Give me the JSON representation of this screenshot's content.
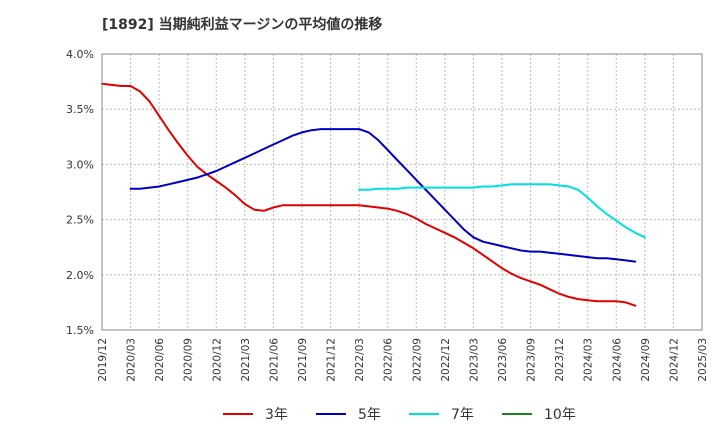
{
  "chart_data": {
    "type": "line",
    "title": "[1892]  当期純利益マージンの平均値の推移",
    "xlabel": "",
    "ylabel": "",
    "ylim": [
      1.5,
      4.0
    ],
    "y_ticks": [
      "1.5%",
      "2.0%",
      "2.5%",
      "3.0%",
      "3.5%",
      "4.0%"
    ],
    "y_tick_values": [
      1.5,
      2.0,
      2.5,
      3.0,
      3.5,
      4.0
    ],
    "x_ticks": [
      "2019/12",
      "2020/03",
      "2020/06",
      "2020/09",
      "2020/12",
      "2021/03",
      "2021/06",
      "2021/09",
      "2021/12",
      "2022/03",
      "2022/06",
      "2022/09",
      "2022/12",
      "2023/03",
      "2023/06",
      "2023/09",
      "2023/12",
      "2024/03",
      "2024/06",
      "2024/09",
      "2024/12",
      "2025/03"
    ],
    "grid": true,
    "legend_position": "bottom",
    "series": [
      {
        "name": "3年",
        "color": "#e00000",
        "start": "2019/12",
        "values": [
          3.73,
          3.72,
          3.71,
          3.71,
          3.66,
          3.57,
          3.44,
          3.31,
          3.19,
          3.08,
          2.98,
          2.91,
          2.85,
          2.79,
          2.72,
          2.64,
          2.59,
          2.58,
          2.61,
          2.63,
          2.63,
          2.63,
          2.63,
          2.63,
          2.63,
          2.63,
          2.63,
          2.63,
          2.62,
          2.61,
          2.6,
          2.58,
          2.55,
          2.51,
          2.46,
          2.42,
          2.38,
          2.34,
          2.29,
          2.24,
          2.18,
          2.12,
          2.06,
          2.01,
          1.97,
          1.94,
          1.91,
          1.87,
          1.83,
          1.8,
          1.78,
          1.77,
          1.76,
          1.76,
          1.76,
          1.75,
          1.72
        ]
      },
      {
        "name": "5年",
        "color": "#0000c0",
        "start": "2020/03",
        "values": [
          2.78,
          2.78,
          2.79,
          2.8,
          2.82,
          2.84,
          2.86,
          2.88,
          2.91,
          2.94,
          2.98,
          3.02,
          3.06,
          3.1,
          3.14,
          3.18,
          3.22,
          3.26,
          3.29,
          3.31,
          3.32,
          3.32,
          3.32,
          3.32,
          3.32,
          3.29,
          3.22,
          3.13,
          3.04,
          2.95,
          2.86,
          2.77,
          2.68,
          2.59,
          2.5,
          2.41,
          2.34,
          2.3,
          2.28,
          2.26,
          2.24,
          2.22,
          2.21,
          2.21,
          2.2,
          2.19,
          2.18,
          2.17,
          2.16,
          2.15,
          2.15,
          2.14,
          2.13,
          2.12
        ]
      },
      {
        "name": "7年",
        "color": "#00e0e0",
        "start": "2022/03",
        "values": [
          2.77,
          2.77,
          2.78,
          2.78,
          2.78,
          2.79,
          2.79,
          2.79,
          2.79,
          2.79,
          2.79,
          2.79,
          2.79,
          2.8,
          2.8,
          2.81,
          2.82,
          2.82,
          2.82,
          2.82,
          2.82,
          2.81,
          2.8,
          2.77,
          2.7,
          2.62,
          2.55,
          2.49,
          2.43,
          2.38,
          2.34
        ]
      },
      {
        "name": "10年",
        "color": "#208020",
        "start": "2025/03",
        "values": []
      }
    ]
  }
}
